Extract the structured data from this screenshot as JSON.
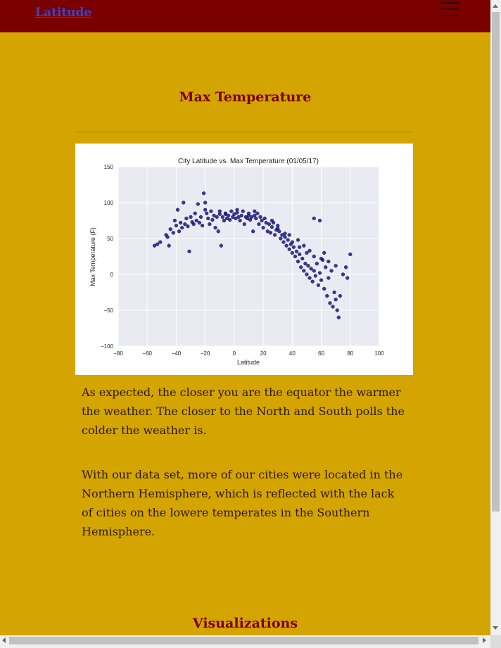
{
  "navbar": {
    "brand": "Latitude"
  },
  "icons": {
    "menu": "hamburger-menu-icon"
  },
  "section": {
    "title": "Max Temperature"
  },
  "paragraphs": [
    "As expected, the closer you are the equator the warmer the weather. The closer to the North and South polls the colder the weather is.",
    "With our data set, more of our cities were located in the Northern Hemisphere, which is reflected with the lack of cities on the lowere temperates in the Southern Hemisphere."
  ],
  "next_section": {
    "title": "Visualizations"
  },
  "colors": {
    "page_bg": "#d4a400",
    "navbar_bg": "#7a0000",
    "heading": "#7a0000",
    "point": "#1a1a8c",
    "plot_bg": "#eaeaf2"
  },
  "chart_data": {
    "type": "scatter",
    "title": "City Latitude vs. Max Temperature (01/05/17)",
    "xlabel": "Latitude",
    "ylabel": "Max Temperature (F)",
    "xlim": [
      -80,
      100
    ],
    "ylim": [
      -100,
      150
    ],
    "xticks": [
      -80,
      -60,
      -40,
      -20,
      0,
      20,
      40,
      60,
      80,
      100
    ],
    "yticks": [
      -100,
      -50,
      0,
      50,
      100,
      150
    ],
    "grid": true,
    "series": [
      {
        "points": [
          [
            -55,
            40
          ],
          [
            -53,
            42
          ],
          [
            -51,
            45
          ],
          [
            -47,
            55
          ],
          [
            -46,
            52
          ],
          [
            -45,
            40
          ],
          [
            -44,
            63
          ],
          [
            -42,
            58
          ],
          [
            -41,
            75
          ],
          [
            -40,
            68
          ],
          [
            -39,
            90
          ],
          [
            -38,
            60
          ],
          [
            -37,
            72
          ],
          [
            -36,
            65
          ],
          [
            -35,
            100
          ],
          [
            -34,
            70
          ],
          [
            -33,
            78
          ],
          [
            -32,
            67
          ],
          [
            -31,
            32
          ],
          [
            -30,
            80
          ],
          [
            -29,
            73
          ],
          [
            -28,
            70
          ],
          [
            -27,
            85
          ],
          [
            -26,
            75
          ],
          [
            -25,
            98
          ],
          [
            -24,
            72
          ],
          [
            -23,
            80
          ],
          [
            -22,
            68
          ],
          [
            -21,
            113
          ],
          [
            -20,
            100
          ],
          [
            -19,
            85
          ],
          [
            -18,
            78
          ],
          [
            -17,
            70
          ],
          [
            -16,
            88
          ],
          [
            -15,
            76
          ],
          [
            -14,
            82
          ],
          [
            -13,
            65
          ],
          [
            -12,
            80
          ],
          [
            -11,
            60
          ],
          [
            -10,
            84
          ],
          [
            -9,
            40
          ],
          [
            -8,
            80
          ],
          [
            -7,
            75
          ],
          [
            -6,
            85
          ],
          [
            -5,
            78
          ],
          [
            -4,
            82
          ],
          [
            -3,
            76
          ],
          [
            -2,
            88
          ],
          [
            -1,
            80
          ],
          [
            0,
            84
          ],
          [
            1,
            78
          ],
          [
            2,
            86
          ],
          [
            3,
            80
          ],
          [
            4,
            75
          ],
          [
            5,
            82
          ],
          [
            6,
            88
          ],
          [
            7,
            70
          ],
          [
            8,
            80
          ],
          [
            9,
            78
          ],
          [
            10,
            85
          ],
          [
            11,
            76
          ],
          [
            12,
            80
          ],
          [
            13,
            60
          ],
          [
            14,
            82
          ],
          [
            15,
            78
          ],
          [
            16,
            85
          ],
          [
            17,
            70
          ],
          [
            18,
            80
          ],
          [
            19,
            75
          ],
          [
            20,
            65
          ],
          [
            21,
            78
          ],
          [
            22,
            72
          ],
          [
            23,
            60
          ],
          [
            24,
            70
          ],
          [
            25,
            58
          ],
          [
            26,
            66
          ],
          [
            27,
            72
          ],
          [
            28,
            55
          ],
          [
            29,
            62
          ],
          [
            30,
            68
          ],
          [
            31,
            60
          ],
          [
            32,
            50
          ],
          [
            33,
            55
          ],
          [
            34,
            45
          ],
          [
            35,
            52
          ],
          [
            36,
            40
          ],
          [
            37,
            48
          ],
          [
            38,
            35
          ],
          [
            39,
            42
          ],
          [
            40,
            30
          ],
          [
            41,
            38
          ],
          [
            42,
            25
          ],
          [
            43,
            32
          ],
          [
            44,
            18
          ],
          [
            45,
            28
          ],
          [
            46,
            10
          ],
          [
            47,
            22
          ],
          [
            48,
            5
          ],
          [
            49,
            15
          ],
          [
            50,
            0
          ],
          [
            51,
            12
          ],
          [
            52,
            -5
          ],
          [
            53,
            8
          ],
          [
            54,
            -10
          ],
          [
            55,
            5
          ],
          [
            56,
            -2
          ],
          [
            57,
            15
          ],
          [
            58,
            -15
          ],
          [
            59,
            2
          ],
          [
            60,
            -8
          ],
          [
            61,
            20
          ],
          [
            62,
            -20
          ],
          [
            63,
            10
          ],
          [
            64,
            -30
          ],
          [
            65,
            -5
          ],
          [
            66,
            -40
          ],
          [
            67,
            5
          ],
          [
            68,
            -45
          ],
          [
            69,
            -25
          ],
          [
            70,
            -35
          ],
          [
            71,
            -50
          ],
          [
            72,
            -60
          ],
          [
            73,
            -30
          ],
          [
            75,
            0
          ],
          [
            77,
            10
          ],
          [
            78,
            -5
          ],
          [
            80,
            28
          ],
          [
            55,
            78
          ],
          [
            59,
            75
          ],
          [
            62,
            30
          ],
          [
            -20,
            90
          ],
          [
            -10,
            88
          ],
          [
            10,
            82
          ],
          [
            30,
            64
          ],
          [
            35,
            57
          ],
          [
            40,
            45
          ],
          [
            45,
            38
          ],
          [
            50,
            30
          ],
          [
            55,
            25
          ],
          [
            60,
            22
          ],
          [
            65,
            18
          ],
          [
            70,
            12
          ],
          [
            52,
            33
          ],
          [
            48,
            40
          ],
          [
            44,
            48
          ],
          [
            38,
            55
          ],
          [
            26,
            75
          ],
          [
            14,
            88
          ],
          [
            2,
            90
          ],
          [
            -6,
            84
          ]
        ]
      }
    ]
  }
}
